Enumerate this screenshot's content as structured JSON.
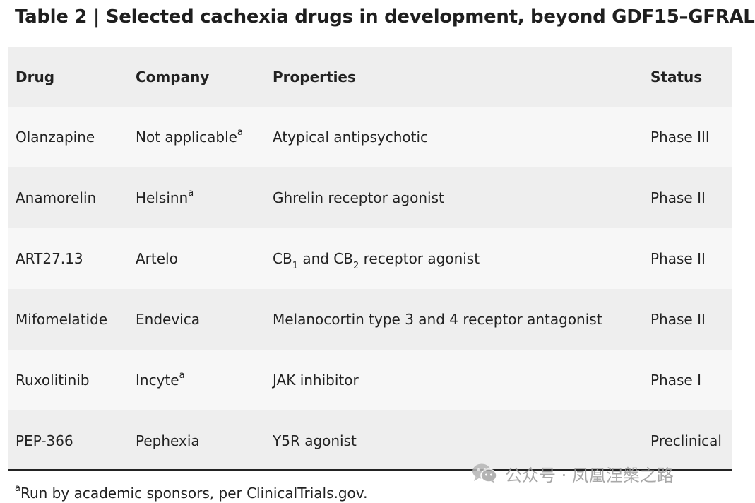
{
  "title": "Table 2 | Selected cachexia drugs in development, beyond GDF15–GFRAL",
  "table": {
    "headers": [
      "Drug",
      "Company",
      "Properties",
      "Status"
    ],
    "rows": [
      {
        "drug": "Olanzapine",
        "company": "Not applicable",
        "company_note": "a",
        "properties": "Atypical antipsychotic",
        "status": "Phase III"
      },
      {
        "drug": "Anamorelin",
        "company": "Helsinn",
        "company_note": "a",
        "properties": "Ghrelin receptor agonist",
        "status": "Phase II"
      },
      {
        "drug": "ART27.13",
        "company": "Artelo",
        "company_note": "",
        "properties_parts": {
          "p1": "CB",
          "s1": "1",
          "p2": " and CB",
          "s2": "2",
          "p3": " receptor agonist"
        },
        "status": "Phase II"
      },
      {
        "drug": "Mifomelatide",
        "company": "Endevica",
        "company_note": "",
        "properties": "Melanocortin type 3 and 4 receptor antagonist",
        "status": "Phase II"
      },
      {
        "drug": "Ruxolitinib",
        "company": "Incyte",
        "company_note": "a",
        "properties": "JAK inhibitor",
        "status": "Phase I"
      },
      {
        "drug": "PEP-366",
        "company": "Pephexia",
        "company_note": "",
        "properties": "Y5R agonist",
        "status": "Preclinical"
      }
    ]
  },
  "footnote": {
    "mark": "a",
    "text": "Run by academic sponsors, per ClinicalTrials.gov."
  },
  "watermark": {
    "text": "公众号 · 凤凰涅槃之路",
    "icon": "wechat-icon"
  }
}
